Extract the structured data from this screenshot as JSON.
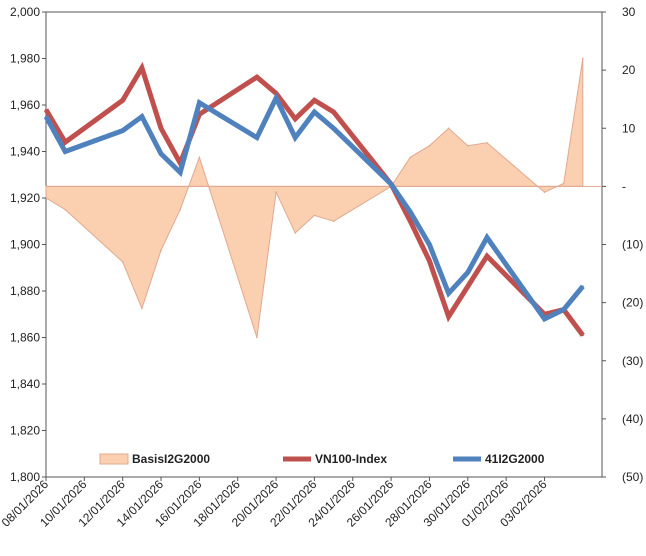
{
  "chart_data": {
    "type": "line",
    "x": [
      "08/01/2026",
      "09/01/2026",
      "12/01/2026",
      "13/01/2026",
      "14/01/2026",
      "15/01/2026",
      "16/01/2026",
      "19/01/2026",
      "20/01/2026",
      "21/01/2026",
      "22/01/2026",
      "23/01/2026",
      "26/01/2026",
      "27/01/2026",
      "28/01/2026",
      "29/01/2026",
      "30/01/2026",
      "02/02/2026",
      "03/02/2026",
      "04/02/2026",
      "05/02/2026"
    ],
    "x_tick_labels": [
      "08/01/2026",
      "10/01/2026",
      "12/01/2026",
      "14/01/2026",
      "16/01/2026",
      "18/01/2026",
      "20/01/2026",
      "22/01/2026",
      "24/01/2026",
      "26/01/2026",
      "28/01/2026",
      "30/01/2026",
      "01/02/2026",
      "03/02/2026"
    ],
    "x_range": [
      "08/01/2026",
      "06/02/2026"
    ],
    "y_left": {
      "min": 1800,
      "max": 2000,
      "step": 20,
      "tick_labels": [
        "1,800",
        "1,820",
        "1,840",
        "1,860",
        "1,880",
        "1,900",
        "1,920",
        "1,940",
        "1,960",
        "1,980",
        "2,000"
      ]
    },
    "y_right": {
      "min": -50,
      "max": 30,
      "step": 10,
      "tick_labels": [
        "(50)",
        "(40)",
        "(30)",
        "(20)",
        "(10)",
        "-",
        "10",
        "20",
        "30"
      ]
    },
    "legend": {
      "placement": "bottom",
      "entries": [
        "BasisI2G2000",
        "VN100-Index",
        "41I2G2000"
      ]
    },
    "series": [
      {
        "name": "BasisI2G2000",
        "type": "area",
        "axis": "right",
        "color": "#fbd0b0",
        "line_color": "#e0a890",
        "points": [
          [
            "08/01/2026",
            -2
          ],
          [
            "09/01/2026",
            -4
          ],
          [
            "12/01/2026",
            -13
          ],
          [
            "13/01/2026",
            -21
          ],
          [
            "14/01/2026",
            -11
          ],
          [
            "15/01/2026",
            -4
          ],
          [
            "16/01/2026",
            5
          ],
          [
            "19/01/2026",
            -26
          ],
          [
            "20/01/2026",
            -1
          ],
          [
            "21/01/2026",
            -8
          ],
          [
            "22/01/2026",
            -5
          ],
          [
            "23/01/2026",
            -6
          ],
          [
            "26/01/2026",
            0
          ],
          [
            "27/01/2026",
            5
          ],
          [
            "28/01/2026",
            7
          ],
          [
            "29/01/2026",
            10
          ],
          [
            "30/01/2026",
            7
          ],
          [
            "31/01/2026",
            7.5
          ],
          [
            "03/02/2026",
            -1
          ],
          [
            "04/02/2026",
            0.5
          ],
          [
            "05/02/2026",
            22
          ]
        ]
      },
      {
        "name": "VN100-Index",
        "type": "line",
        "axis": "left",
        "color": "#c0504d",
        "points": [
          [
            "08/01/2026",
            1958
          ],
          [
            "09/01/2026",
            1944
          ],
          [
            "12/01/2026",
            1962
          ],
          [
            "13/01/2026",
            1976
          ],
          [
            "14/01/2026",
            1950
          ],
          [
            "15/01/2026",
            1935
          ],
          [
            "16/01/2026",
            1956
          ],
          [
            "19/01/2026",
            1972
          ],
          [
            "20/01/2026",
            1965
          ],
          [
            "21/01/2026",
            1954
          ],
          [
            "22/01/2026",
            1962
          ],
          [
            "23/01/2026",
            1957
          ],
          [
            "26/01/2026",
            1926
          ],
          [
            "27/01/2026",
            1910
          ],
          [
            "28/01/2026",
            1893
          ],
          [
            "29/01/2026",
            1869
          ],
          [
            "31/01/2026",
            1895
          ],
          [
            "03/02/2026",
            1870
          ],
          [
            "04/02/2026",
            1872
          ],
          [
            "05/02/2026",
            1861
          ]
        ]
      },
      {
        "name": "41I2G2000",
        "type": "line",
        "axis": "left",
        "color": "#4f81bd",
        "points": [
          [
            "08/01/2026",
            1955
          ],
          [
            "09/01/2026",
            1940
          ],
          [
            "12/01/2026",
            1949
          ],
          [
            "13/01/2026",
            1955
          ],
          [
            "14/01/2026",
            1939
          ],
          [
            "15/01/2026",
            1931
          ],
          [
            "16/01/2026",
            1961
          ],
          [
            "19/01/2026",
            1946
          ],
          [
            "20/01/2026",
            1963
          ],
          [
            "21/01/2026",
            1946
          ],
          [
            "22/01/2026",
            1957
          ],
          [
            "23/01/2026",
            1950
          ],
          [
            "26/01/2026",
            1926
          ],
          [
            "27/01/2026",
            1914
          ],
          [
            "28/01/2026",
            1900
          ],
          [
            "29/01/2026",
            1879
          ],
          [
            "30/01/2026",
            1888
          ],
          [
            "31/01/2026",
            1903
          ],
          [
            "03/02/2026",
            1868
          ],
          [
            "04/02/2026",
            1872
          ],
          [
            "05/02/2026",
            1882
          ]
        ]
      }
    ]
  }
}
